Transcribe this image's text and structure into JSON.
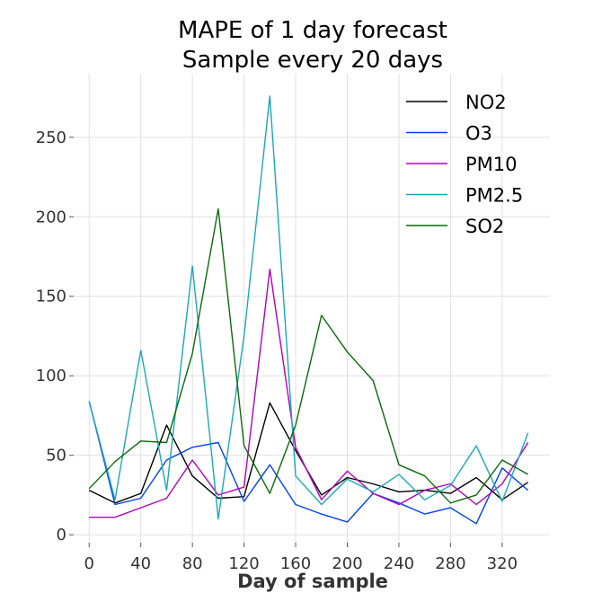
{
  "chart_data": {
    "type": "line",
    "title": [
      "MAPE of 1 day forecast",
      "Sample every 20 days"
    ],
    "xlabel": "Day of sample",
    "ylabel": "",
    "x": [
      0,
      20,
      40,
      60,
      80,
      100,
      120,
      140,
      160,
      180,
      200,
      220,
      240,
      260,
      280,
      300,
      320,
      340
    ],
    "xticks": [
      0,
      40,
      80,
      120,
      160,
      200,
      240,
      280,
      320
    ],
    "yticks": [
      0,
      50,
      100,
      150,
      200,
      250
    ],
    "xlim": [
      -12,
      357
    ],
    "ylim": [
      -5,
      290
    ],
    "grid": true,
    "legend_position": "top-right",
    "series": [
      {
        "name": "NO2",
        "color": "#000000",
        "values": [
          28,
          20,
          26,
          69,
          37,
          23,
          24,
          83,
          53,
          25,
          36,
          32,
          27,
          28,
          26,
          36,
          22,
          33
        ]
      },
      {
        "name": "O3",
        "color": "#0040ff",
        "values": [
          84,
          19,
          23,
          47,
          55,
          58,
          21,
          44,
          19,
          13,
          8,
          26,
          20,
          13,
          17,
          7,
          42,
          28
        ]
      },
      {
        "name": "PM10",
        "color": "#b000c0",
        "values": [
          11,
          11,
          17,
          23,
          47,
          25,
          30,
          167,
          55,
          22,
          40,
          26,
          19,
          28,
          32,
          19,
          32,
          58
        ]
      },
      {
        "name": "PM2.5",
        "color": "#1aa8b8",
        "values": [
          84,
          22,
          116,
          28,
          169,
          10,
          125,
          276,
          37,
          19,
          35,
          27,
          38,
          22,
          31,
          56,
          21,
          64
        ]
      },
      {
        "name": "SO2",
        "color": "#0a6a0a",
        "values": [
          29,
          46,
          59,
          58,
          114,
          205,
          56,
          26,
          69,
          138,
          115,
          97,
          44,
          37,
          20,
          25,
          47,
          38
        ]
      }
    ]
  }
}
